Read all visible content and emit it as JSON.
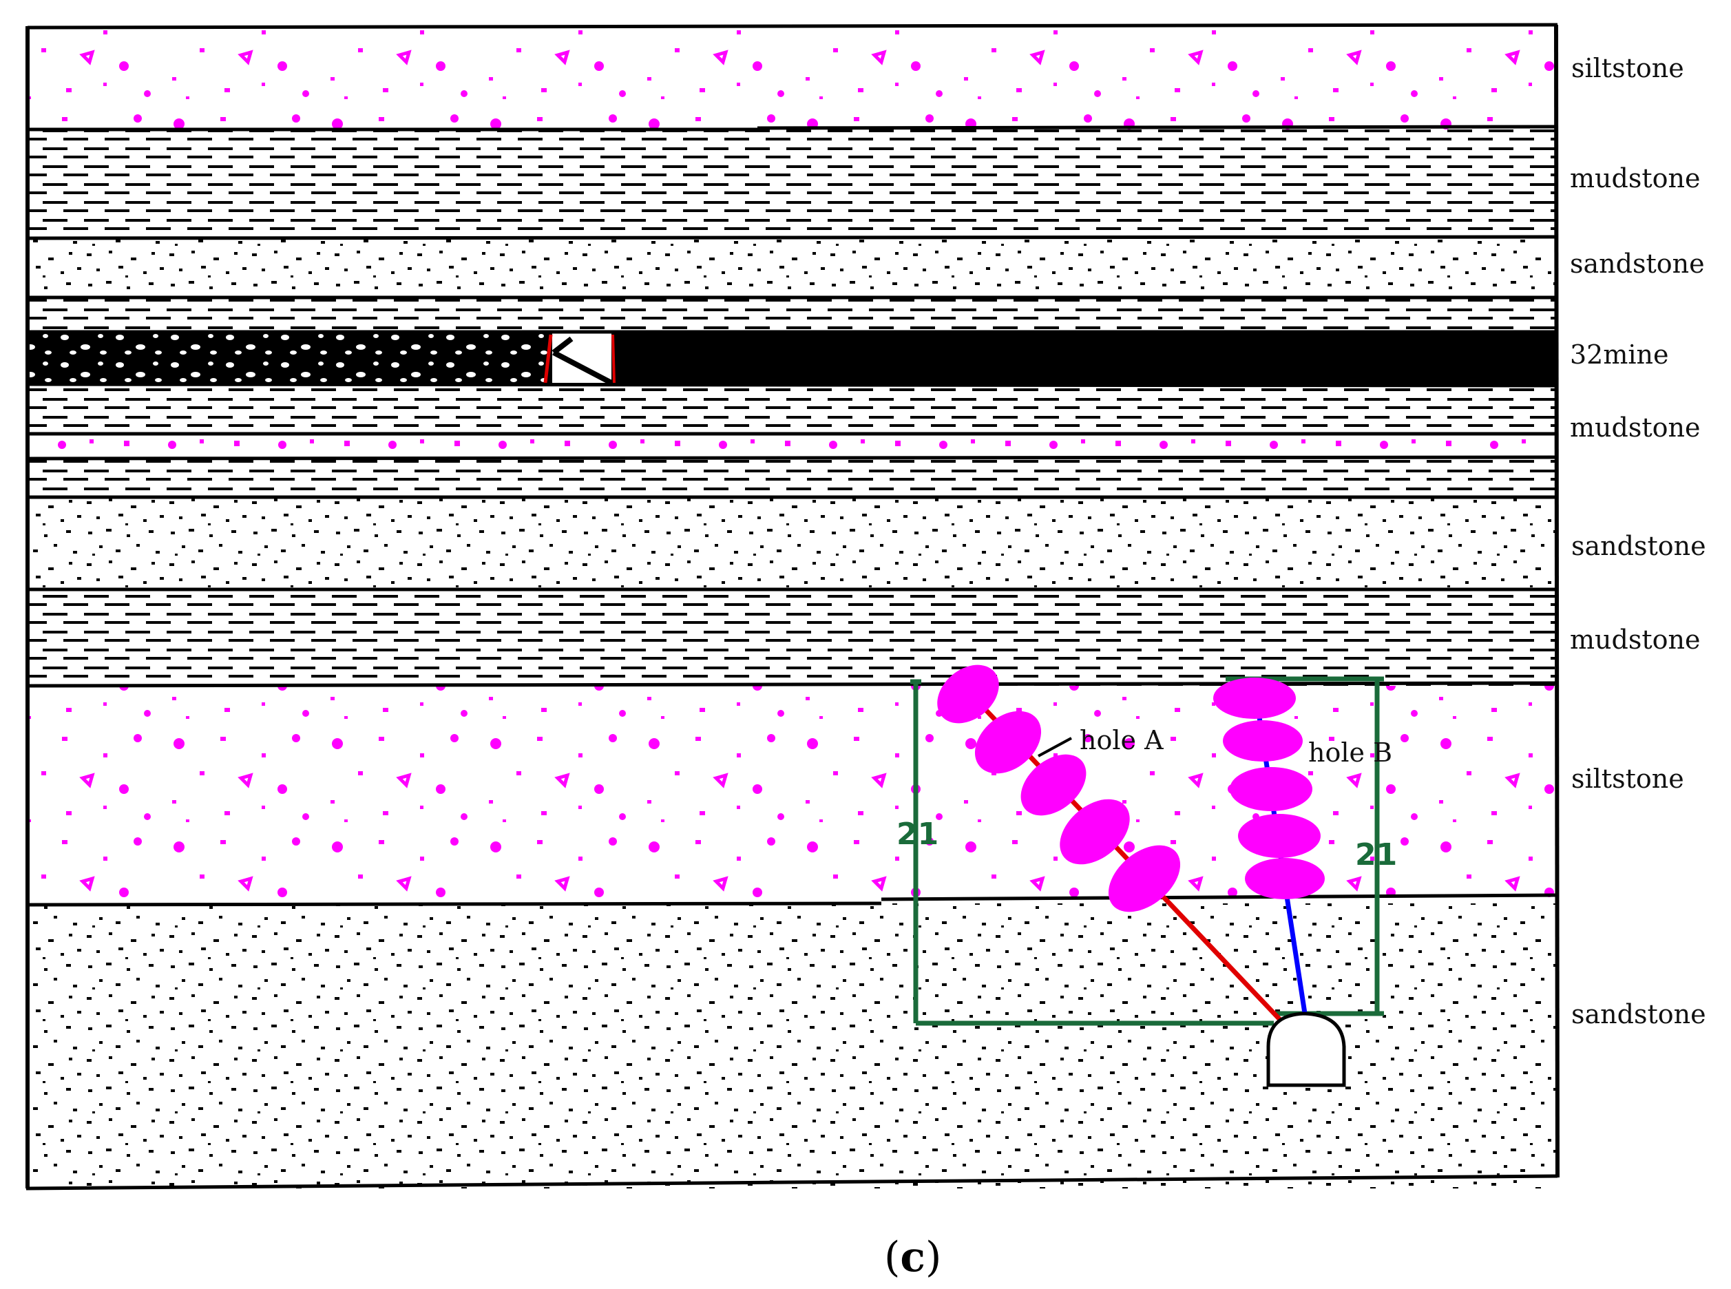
{
  "layers": [
    {
      "label": "siltstone",
      "pattern": "siltstone"
    },
    {
      "label": "mudstone",
      "pattern": "mudstone"
    },
    {
      "label": "sandstone",
      "pattern": "sandstone"
    },
    {
      "label": "32mine",
      "pattern": "coal"
    },
    {
      "label": "mudstone",
      "pattern": "mudstone"
    },
    {
      "label": "sandstone",
      "pattern": "sandstone"
    },
    {
      "label": "mudstone",
      "pattern": "mudstone"
    },
    {
      "label": "siltstone",
      "pattern": "siltstone"
    },
    {
      "label": "sandstone",
      "pattern": "sandstone"
    }
  ],
  "holes": {
    "hole_a_label": "hole A",
    "hole_b_label": "hole B"
  },
  "dimensions": {
    "left_value": "21",
    "right_value": "21"
  },
  "caption": {
    "open": "(",
    "letter": "c",
    "close": ")"
  },
  "colors": {
    "siltstone_dot": "#ff00ff",
    "fracture_zone": "#ff00ff",
    "hole_a": "#ff0000",
    "hole_b": "#0000ff",
    "dimension_box": "#1a6b3a",
    "coal_seam": "#000000"
  }
}
